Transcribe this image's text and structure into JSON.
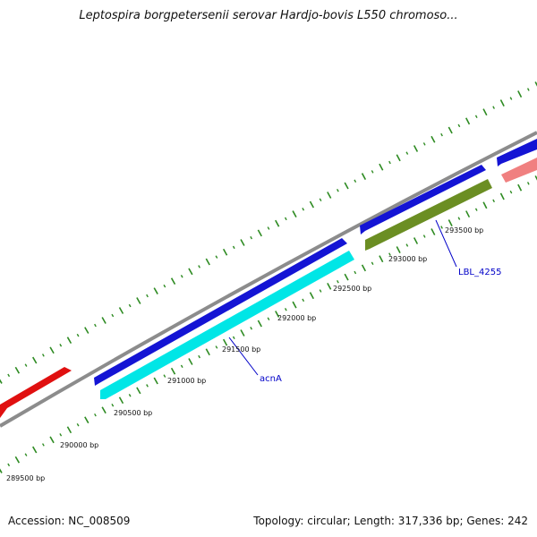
{
  "title": "Leptospira borgpetersenii serovar Hardjo-bovis L550 chromoso...",
  "footer": {
    "accession": "Accession: NC_008509",
    "summary": "Topology: circular; Length: 317,336 bp; Genes: 242"
  },
  "axis_labels": [
    "289500 bp",
    "290000 bp",
    "290500 bp",
    "291000 bp",
    "291500 bp",
    "292000 bp",
    "292500 bp",
    "293000 bp",
    "293500 bp"
  ],
  "gene_labels": [
    "acnA",
    "LBL_4255"
  ],
  "colors": {
    "backbone": "#8c8c8c",
    "ticks": "#2e8b22",
    "forward": "#1414d4",
    "reverse_cyan": "#00e6e6",
    "reverse_olive": "#6b8e23",
    "red": "#e01010",
    "pink": "#f08080",
    "label_line": "#0000c8"
  }
}
